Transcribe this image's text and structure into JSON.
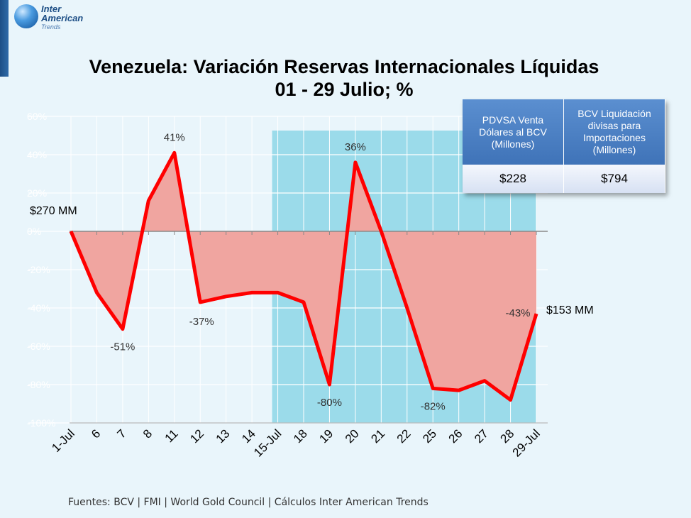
{
  "logo": {
    "line1": "Inter",
    "line2": "American",
    "line3": "Trends"
  },
  "title": {
    "line1": "Venezuela: Variación Reservas Internacionales Líquidas",
    "line2": "01 - 29 Julio; %"
  },
  "annotations": {
    "start": "$270 MM",
    "end": "$153 MM"
  },
  "info_table": {
    "headers": [
      "PDVSA Venta Dólares al BCV (Millones)",
      "BCV Liquidación divisas para Importaciones (Millones)"
    ],
    "values": [
      "$228",
      "$794"
    ]
  },
  "source": "Fuentes: BCV | FMI | World Gold Council  | Cálculos Inter American Trends",
  "colors": {
    "line": "#ff0000",
    "area": "#f0a5a0",
    "highlight": "#9bdbea",
    "background": "#e9f5fb"
  },
  "chart_data": {
    "type": "area",
    "x": [
      "1-Jul",
      "6",
      "7",
      "8",
      "11",
      "12",
      "13",
      "14",
      "15-Jul",
      "18",
      "19",
      "20",
      "21",
      "22",
      "25",
      "26",
      "27",
      "28",
      "29-Jul"
    ],
    "series": [
      {
        "values": [
          0,
          -32,
          -51,
          16,
          41,
          -37,
          -34,
          -32,
          -32,
          -37,
          -80,
          36,
          0,
          -40,
          -82,
          -83,
          -78,
          -88,
          -43
        ]
      }
    ],
    "ylim": [
      -100,
      60
    ],
    "y_ticks": [
      60,
      40,
      20,
      0,
      -20,
      -40,
      -60,
      -80,
      -100
    ],
    "y_tick_labels": [
      "60%",
      "40%",
      "20%",
      "0%",
      "-20%",
      "-40%",
      "-60%",
      "-80%",
      "-100%"
    ],
    "data_labels": [
      {
        "index": 2,
        "text": "-51%"
      },
      {
        "index": 4,
        "text": "41%"
      },
      {
        "index": 5,
        "text": "-37%"
      },
      {
        "index": 10,
        "text": "-80%"
      },
      {
        "index": 11,
        "text": "36%"
      },
      {
        "index": 14,
        "text": "-82%"
      },
      {
        "index": 18,
        "text": "-43%"
      }
    ],
    "highlight_range": {
      "from": "15-Jul",
      "to": "29-Jul"
    },
    "grid": true
  }
}
